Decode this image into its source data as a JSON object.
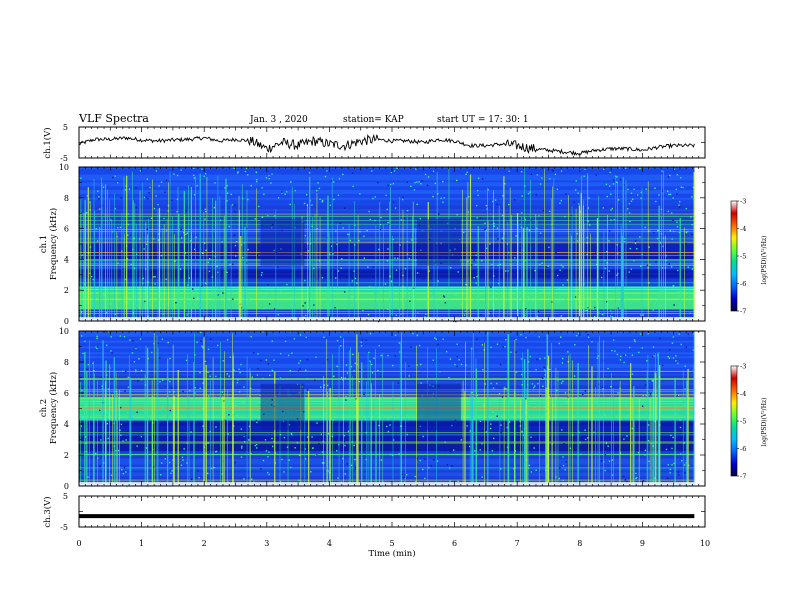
{
  "header": {
    "title": "VLF Spectra",
    "date": "Jan. 3 , 2020",
    "station": "station= KAP",
    "start": "start UT = 17: 30: 1"
  },
  "chart_data": [
    {
      "type": "line",
      "panel": "ch1-waveform",
      "ylabel": "ch.1(V)",
      "yticks": [
        "5",
        "-5"
      ],
      "ylim": [
        -5,
        5
      ],
      "xlim": [
        0,
        10
      ],
      "x_extent_min": 9.83,
      "color": "#000000",
      "x": [
        0,
        0.25,
        0.5,
        0.75,
        1.0,
        1.25,
        1.5,
        1.75,
        2.0,
        2.25,
        2.5,
        2.75,
        3.0,
        3.25,
        3.5,
        3.75,
        4.0,
        4.25,
        4.5,
        4.75,
        5.0,
        5.25,
        5.5,
        5.75,
        6.0,
        6.25,
        6.5,
        6.75,
        7.0,
        7.25,
        7.5,
        7.75,
        8.0,
        8.25,
        8.5,
        8.75,
        9.0,
        9.25,
        9.5,
        9.83
      ],
      "y": [
        -0.5,
        1.0,
        1.0,
        1.5,
        0.8,
        0.5,
        0.8,
        1.0,
        1.5,
        0.5,
        1.0,
        0.5,
        -2.0,
        0.0,
        -1.0,
        0.5,
        -0.5,
        -1.0,
        0.5,
        1.0,
        0.5,
        0.5,
        0.0,
        1.0,
        0.5,
        -1.0,
        -1.0,
        -0.5,
        -1.0,
        -2.0,
        -2.5,
        -3.0,
        -3.5,
        -2.5,
        -2.0,
        -2.0,
        -2.5,
        -1.5,
        -1.0,
        -1.0
      ]
    },
    {
      "type": "heatmap",
      "panel": "ch1-spectrogram",
      "ylabel_top": "ch.1",
      "ylabel": "Frequency (kHz)",
      "yticks": [
        "10",
        "8",
        "6",
        "4",
        "2",
        "0"
      ],
      "ylim": [
        0,
        10
      ],
      "xlim": [
        0,
        10
      ],
      "x_extent_min": 9.83,
      "bright_band_khz": [
        0.8,
        2.2
      ],
      "dark_bands_khz": [
        [
          2.8,
          3.4
        ],
        [
          4.0,
          5.0
        ]
      ],
      "quiet_gaps_min": [
        [
          2.9,
          3.6
        ],
        [
          5.4,
          6.1
        ]
      ],
      "colorbar": {
        "label": "log(PSD)(V²/Hz)",
        "ticks": [
          "-3",
          "-4",
          "-5",
          "-6",
          "-7"
        ],
        "range": [
          -7,
          -3
        ],
        "colors": [
          "#ffffff",
          "#cc0000",
          "#ff6600",
          "#ffee00",
          "#66ff33",
          "#00dd99",
          "#00bbff",
          "#0066ff",
          "#0000cc",
          "#000044"
        ]
      }
    },
    {
      "type": "heatmap",
      "panel": "ch2-spectrogram",
      "ylabel_top": "ch.2",
      "ylabel": "Frequency (kHz)",
      "yticks": [
        "10",
        "8",
        "6",
        "4",
        "2",
        "0"
      ],
      "ylim": [
        0,
        10
      ],
      "xlim": [
        0,
        10
      ],
      "x_extent_min": 9.83,
      "bright_band_khz": [
        4.2,
        5.8
      ],
      "dark_bands_khz": [
        [
          2.2,
          3.2
        ],
        [
          3.4,
          4.3
        ]
      ],
      "quiet_gaps_min": [
        [
          2.9,
          3.6
        ],
        [
          5.4,
          6.1
        ]
      ],
      "colorbar": {
        "label": "log(PSD)(V²/Hz)",
        "ticks": [
          "-3",
          "-4",
          "-5",
          "-6",
          "-7"
        ],
        "range": [
          -7,
          -3
        ],
        "colors": [
          "#ffffff",
          "#cc0000",
          "#ff6600",
          "#ffee00",
          "#66ff33",
          "#00dd99",
          "#00bbff",
          "#0066ff",
          "#0000cc",
          "#000044"
        ]
      }
    },
    {
      "type": "line",
      "panel": "ch3-waveform",
      "ylabel": "ch.3(V)",
      "yticks": [
        "5",
        "-5"
      ],
      "ylim": [
        -5,
        5
      ],
      "xlim": [
        0,
        10
      ],
      "x_extent_min": 9.83,
      "color": "#000000",
      "x": [
        0,
        9.83
      ],
      "y": [
        -1.5,
        -1.5
      ]
    }
  ],
  "xaxis": {
    "label": "Time (min)",
    "ticks": [
      "0",
      "1",
      "2",
      "3",
      "4",
      "5",
      "6",
      "7",
      "8",
      "9",
      "10"
    ]
  }
}
